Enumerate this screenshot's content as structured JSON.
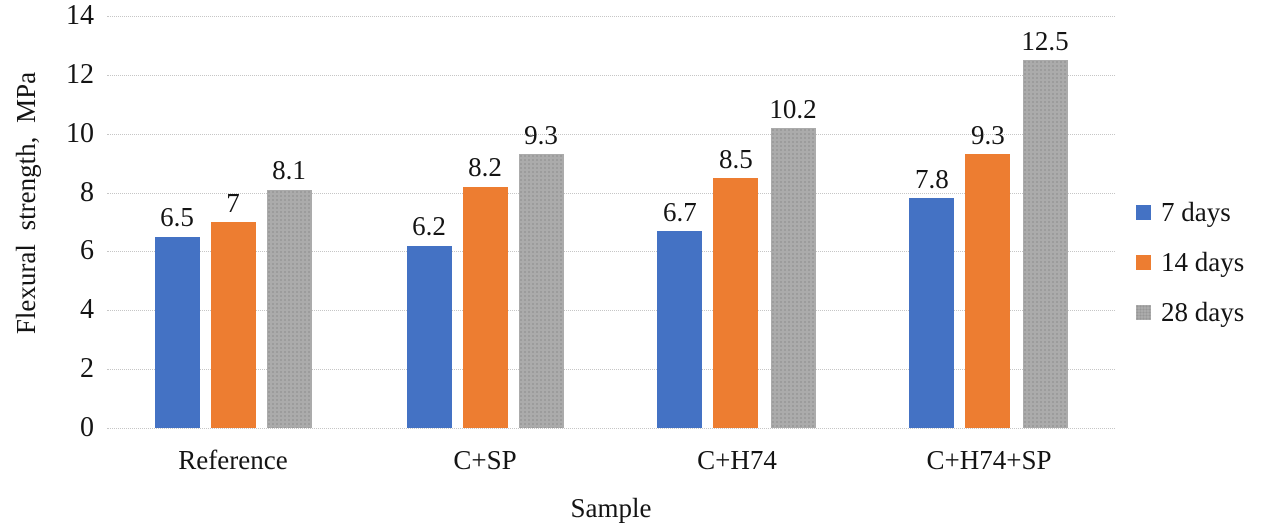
{
  "chart_data": {
    "type": "bar",
    "title": "",
    "xlabel": "Sample",
    "ylabel": "Flexural strength, MPa",
    "ylim": [
      0,
      14
    ],
    "yticks": [
      0,
      2,
      4,
      6,
      8,
      10,
      12,
      14
    ],
    "grid": "horizontal-dotted",
    "legend_position": "right",
    "categories": [
      "Reference",
      "C+SP",
      "C+H74",
      "C+H74+SP"
    ],
    "series": [
      {
        "name": "7 days",
        "color": "#4472c4",
        "textured": false,
        "values": [
          6.5,
          6.2,
          6.7,
          7.8
        ]
      },
      {
        "name": "14 days",
        "color": "#ed7d31",
        "textured": false,
        "values": [
          7,
          8.2,
          8.5,
          9.3
        ]
      },
      {
        "name": "28 days",
        "color": "#ababab",
        "textured": true,
        "values": [
          8.1,
          9.3,
          10.2,
          12.5
        ]
      }
    ],
    "data_labels_shown": true
  }
}
